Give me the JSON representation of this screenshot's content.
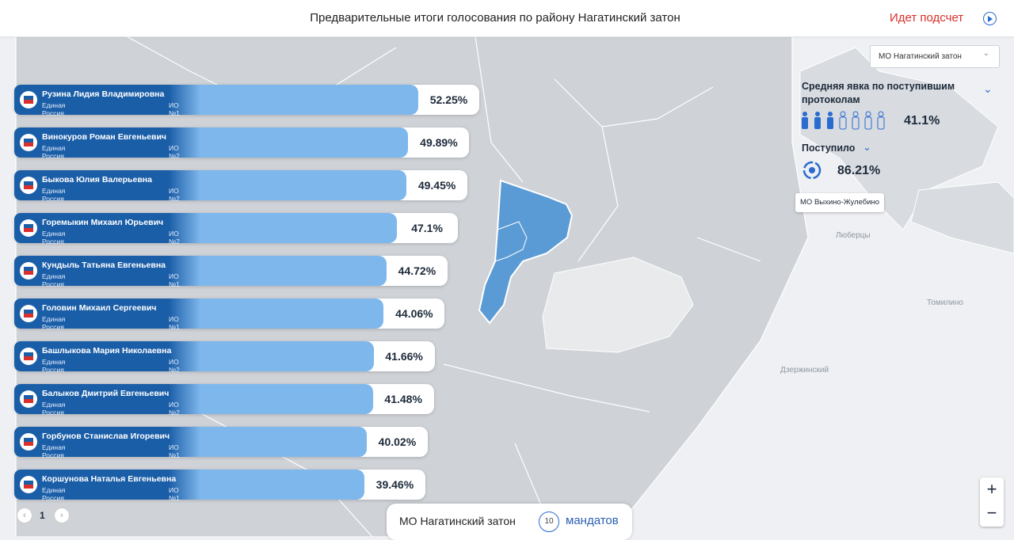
{
  "header": {
    "title": "Предварительные итоги голосования по району Нагатинский затон",
    "status": "Идет подсчет"
  },
  "candidates": [
    {
      "name": "Рузина Лидия Владимировна",
      "party": "Единая Россия",
      "district": "ИО №1",
      "share": {
        "value": 52.25,
        "label": "52.25%"
      }
    },
    {
      "name": "Винокуров Роман Евгеньевич",
      "party": "Единая Россия",
      "district": "ИО №2",
      "share": {
        "value": 49.89,
        "label": "49.89%"
      }
    },
    {
      "name": "Быкова Юлия Валерьевна",
      "party": "Единая Россия",
      "district": "ИО №2",
      "share": {
        "value": 49.45,
        "label": "49.45%"
      }
    },
    {
      "name": "Горемыкин Михаил Юрьевич",
      "party": "Единая Россия",
      "district": "ИО №2",
      "share": {
        "value": 47.1,
        "label": "47.1%"
      }
    },
    {
      "name": "Кундыль Татьяна Евгеньевна",
      "party": "Единая Россия",
      "district": "ИО №1",
      "share": {
        "value": 44.72,
        "label": "44.72%"
      }
    },
    {
      "name": "Головин Михаил Сергеевич",
      "party": "Единая Россия",
      "district": "ИО №1",
      "share": {
        "value": 44.06,
        "label": "44.06%"
      }
    },
    {
      "name": "Башлыкова Мария Николаевна",
      "party": "Единая Россия",
      "district": "ИО №2",
      "share": {
        "value": 41.66,
        "label": "41.66%"
      }
    },
    {
      "name": "Балыков Дмитрий Евгеньевич",
      "party": "Единая Россия",
      "district": "ИО №2",
      "share": {
        "value": 41.48,
        "label": "41.48%"
      }
    },
    {
      "name": "Горбунов Станислав Игоревич",
      "party": "Единая Россия",
      "district": "ИО №1",
      "share": {
        "value": 40.02,
        "label": "40.02%"
      }
    },
    {
      "name": "Коршунова Наталья Евгеньевна",
      "party": "Единая Россия",
      "district": "ИО №1",
      "share": {
        "value": 39.46,
        "label": "39.46%"
      }
    }
  ],
  "pagination": {
    "page": "1"
  },
  "panel": {
    "dropdown": "МО Нагатинский затон",
    "turnout_label": "Средняя явка по поступившим протоколам",
    "turnout": "41.1%",
    "received_label": "Поступило",
    "received": "86.21%",
    "tooltip": "МО Выхино-Жулебино"
  },
  "footer": {
    "area": "МО Нагатинский затон",
    "mandates_count": "10",
    "mandates_label": "мандатов"
  },
  "map_labels": [
    "Люберцы",
    "Томилино",
    "Дзержинский"
  ],
  "zoom": {
    "in": "+",
    "out": "−"
  }
}
